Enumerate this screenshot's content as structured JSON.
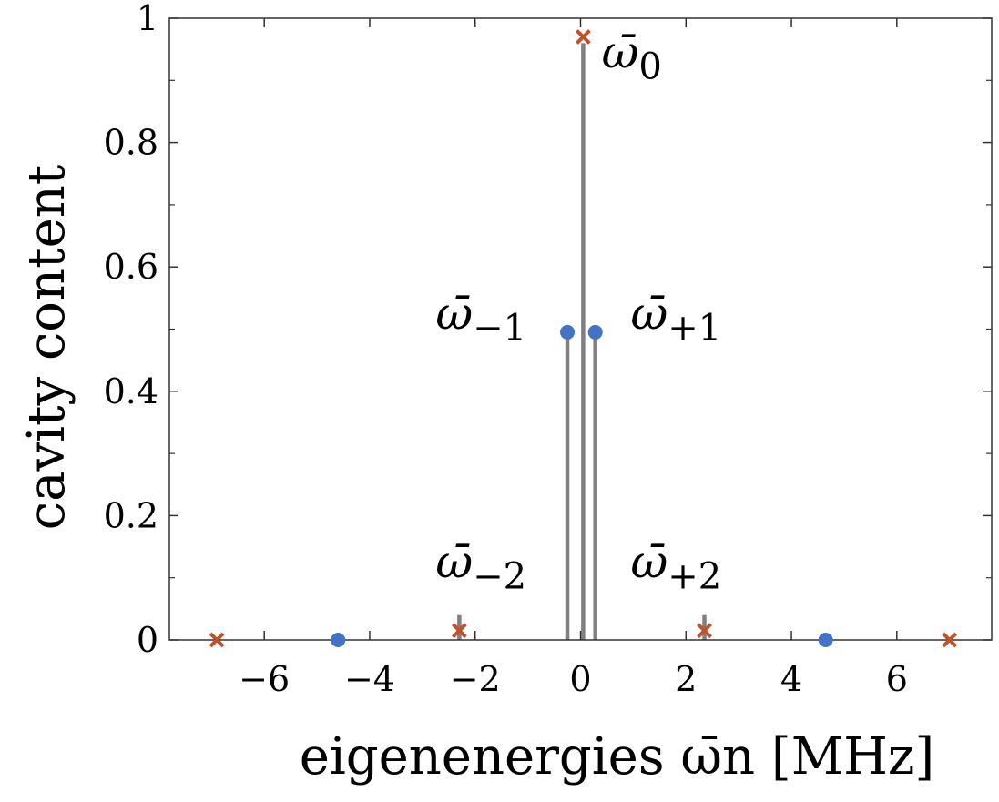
{
  "chart_data": {
    "type": "scatter",
    "xlabel": "eigenenergies ω̄n [MHz]",
    "ylabel": "cavity content",
    "xlim": [
      -7.8,
      7.8
    ],
    "ylim": [
      0,
      1
    ],
    "xticks": [
      -6,
      -4,
      -2,
      0,
      2,
      4,
      6
    ],
    "yticks": [
      0,
      0.2,
      0.4,
      0.6,
      0.8,
      1
    ],
    "xtick_labels": [
      "−6",
      "−4",
      "−2",
      "0",
      "2",
      "4",
      "6"
    ],
    "ytick_labels": [
      "0",
      "0.2",
      "0.4",
      "0.6",
      "0.8",
      "1"
    ],
    "grid": false,
    "colors": {
      "cross": "#c0522a",
      "dot": "#4472c4",
      "stem": "#808080"
    },
    "series": [
      {
        "marker": "x",
        "color": "#c0522a",
        "x": [
          -6.9,
          -2.3,
          0.05,
          2.35,
          7.0
        ],
        "y": [
          0.0,
          0.015,
          0.97,
          0.015,
          0.0
        ]
      },
      {
        "marker": "o",
        "color": "#4472c4",
        "x": [
          -4.6,
          -0.25,
          0.28,
          4.65
        ],
        "y": [
          0.0,
          0.495,
          0.495,
          0.0
        ]
      }
    ],
    "stems": [
      {
        "x": 0.05,
        "y": 0.96
      },
      {
        "x": -0.25,
        "y": 0.49
      },
      {
        "x": 0.28,
        "y": 0.49
      },
      {
        "x": -2.3,
        "y": 0.04
      },
      {
        "x": 2.35,
        "y": 0.04
      }
    ],
    "annotations": [
      {
        "base": "ω̄",
        "sub": "0",
        "x": 0.4,
        "y": 0.92
      },
      {
        "base": "ω̄",
        "sub": "−1",
        "x": -2.75,
        "y": 0.5
      },
      {
        "base": "ω̄",
        "sub": "+1",
        "x": 0.95,
        "y": 0.5
      },
      {
        "base": "ω̄",
        "sub": "−2",
        "x": -2.75,
        "y": 0.1
      },
      {
        "base": "ω̄",
        "sub": "+2",
        "x": 0.95,
        "y": 0.1
      }
    ]
  }
}
